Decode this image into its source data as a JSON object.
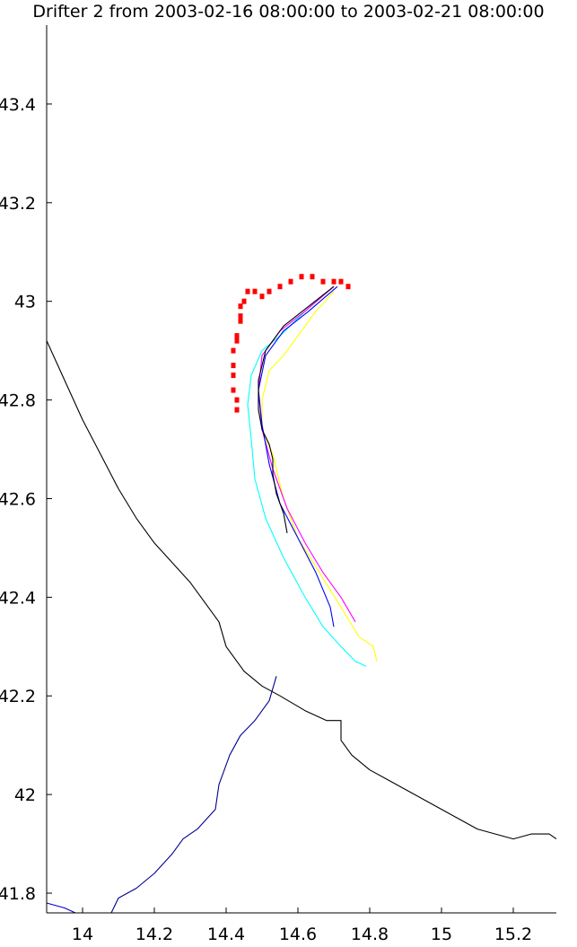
{
  "chart_data": {
    "type": "line",
    "title": "Drifter 2 from 2003-02-16 08:00:00 to 2003-02-21 08:00:00",
    "xlabel": "",
    "ylabel": "",
    "xlim": [
      13.9,
      15.32
    ],
    "ylim": [
      41.76,
      43.56
    ],
    "x_ticks": [
      14,
      14.2,
      14.4,
      14.6,
      14.8,
      15,
      15.2
    ],
    "x_tick_labels": [
      "14",
      "14.2",
      "14.4",
      "14.6",
      "14.8",
      "15",
      "15.2"
    ],
    "y_ticks": [
      41.8,
      42,
      42.2,
      42.4,
      42.6,
      42.8,
      43,
      43.2,
      43.4
    ],
    "y_tick_labels": [
      "41.8",
      "42",
      "42.2",
      "42.4",
      "42.6",
      "42.8",
      "43",
      "43.2",
      "43.4"
    ],
    "grid": false,
    "legend": "none",
    "series": [
      {
        "color": "#000000",
        "style": "line",
        "role": "coastline",
        "x": [
          13.9,
          13.95,
          14.0,
          14.05,
          14.1,
          14.15,
          14.2,
          14.25,
          14.3,
          14.35,
          14.38,
          14.4,
          14.45,
          14.5,
          14.55,
          14.62,
          14.68,
          14.72,
          14.72,
          14.75,
          14.8,
          14.85,
          14.9,
          14.95,
          15.0,
          15.05,
          15.1,
          15.15,
          15.2,
          15.25,
          15.3,
          15.32
        ],
        "y": [
          42.92,
          42.84,
          42.76,
          42.69,
          42.62,
          42.56,
          42.51,
          42.47,
          42.43,
          42.38,
          42.35,
          42.3,
          42.25,
          42.22,
          42.2,
          42.17,
          42.15,
          42.15,
          42.11,
          42.08,
          42.05,
          42.03,
          42.01,
          41.99,
          41.97,
          41.95,
          41.93,
          41.92,
          41.91,
          41.92,
          41.92,
          41.91
        ]
      },
      {
        "color": "#00008b",
        "style": "line",
        "role": "river",
        "x": [
          14.54,
          14.52,
          14.48,
          14.44,
          14.41,
          14.38,
          14.37,
          14.32,
          14.28,
          14.25,
          14.2,
          14.15,
          14.1,
          14.08
        ],
        "y": [
          42.24,
          42.19,
          42.15,
          42.12,
          42.08,
          42.02,
          41.97,
          41.93,
          41.91,
          41.88,
          41.84,
          41.81,
          41.79,
          41.76
        ]
      },
      {
        "color": "#0000cc",
        "style": "line",
        "role": "coast-fragment",
        "x": [
          13.9,
          13.95,
          13.98
        ],
        "y": [
          41.78,
          41.77,
          41.76
        ]
      },
      {
        "color": "#ff0000",
        "style": "marker",
        "role": "drifter",
        "x": [
          14.43,
          14.43,
          14.42,
          14.42,
          14.42,
          14.42,
          14.43,
          14.43,
          14.44,
          14.44,
          14.44,
          14.45,
          14.46,
          14.48,
          14.5,
          14.52,
          14.55,
          14.58,
          14.61,
          14.64,
          14.67,
          14.7,
          14.72,
          14.74
        ],
        "y": [
          42.78,
          42.8,
          42.82,
          42.85,
          42.87,
          42.9,
          42.92,
          42.93,
          42.96,
          42.97,
          42.99,
          43.0,
          43.02,
          43.02,
          43.01,
          43.02,
          43.03,
          43.04,
          43.05,
          43.05,
          43.04,
          43.04,
          43.04,
          43.03
        ]
      },
      {
        "color": "#ffff00",
        "style": "line",
        "role": "model-track",
        "x": [
          14.7,
          14.65,
          14.6,
          14.56,
          14.52,
          14.5,
          14.5,
          14.53,
          14.56,
          14.6,
          14.66,
          14.72,
          14.77,
          14.81,
          14.82
        ],
        "y": [
          43.02,
          42.98,
          42.93,
          42.89,
          42.86,
          42.8,
          42.74,
          42.69,
          42.6,
          42.52,
          42.45,
          42.38,
          42.32,
          42.3,
          42.27
        ]
      },
      {
        "color": "#00ffff",
        "style": "line",
        "role": "model-track",
        "x": [
          14.7,
          14.62,
          14.55,
          14.5,
          14.47,
          14.46,
          14.47,
          14.48,
          14.51,
          14.56,
          14.62,
          14.67,
          14.72,
          14.76,
          14.79
        ],
        "y": [
          43.03,
          42.98,
          42.93,
          42.9,
          42.85,
          42.79,
          42.72,
          42.64,
          42.56,
          42.48,
          42.4,
          42.34,
          42.3,
          42.27,
          42.26
        ]
      },
      {
        "color": "#ff00ff",
        "style": "line",
        "role": "model-track",
        "x": [
          14.7,
          14.62,
          14.55,
          14.5,
          14.49,
          14.5,
          14.53,
          14.57,
          14.62,
          14.67,
          14.72,
          14.76
        ],
        "y": [
          43.03,
          42.98,
          42.94,
          42.89,
          42.82,
          42.74,
          42.66,
          42.58,
          42.51,
          42.45,
          42.4,
          42.35
        ]
      },
      {
        "color": "#0000ff",
        "style": "line",
        "role": "model-track",
        "x": [
          14.71,
          14.63,
          14.56,
          14.51,
          14.49,
          14.5,
          14.52,
          14.55,
          14.6,
          14.65,
          14.69,
          14.7
        ],
        "y": [
          43.03,
          42.98,
          42.94,
          42.89,
          42.82,
          42.75,
          42.67,
          42.59,
          42.52,
          42.45,
          42.38,
          42.34
        ]
      },
      {
        "color": "#000000",
        "style": "line",
        "role": "model-track",
        "x": [
          14.7,
          14.63,
          14.56,
          14.51,
          14.49,
          14.49,
          14.5,
          14.52,
          14.53,
          14.53,
          14.54,
          14.56,
          14.57
        ],
        "y": [
          43.03,
          42.99,
          42.95,
          42.9,
          42.84,
          42.78,
          42.74,
          42.71,
          42.68,
          42.65,
          42.61,
          42.57,
          42.53
        ]
      }
    ]
  }
}
